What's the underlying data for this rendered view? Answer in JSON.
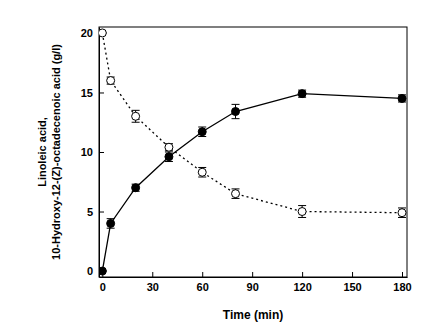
{
  "chart_data": {
    "type": "line",
    "xlabel": "Time (min)",
    "ylabel": [
      "Linoleic acid,",
      "10-Hydroxy-12-(Z)-octadecenoic acid (g/l)"
    ],
    "x": [
      0,
      5,
      20,
      40,
      60,
      80,
      120,
      180
    ],
    "series": [
      {
        "color": "#000000",
        "marker": "filled-circle",
        "line_style": "solid",
        "values": [
          0,
          4.0,
          7.0,
          9.6,
          11.7,
          13.4,
          14.9,
          14.5
        ],
        "errors": [
          0,
          0.4,
          0.3,
          0.4,
          0.4,
          0.6,
          0.3,
          0.3
        ]
      },
      {
        "color": "#000000",
        "marker": "open-circle",
        "line_style": "dotted",
        "values": [
          20,
          16,
          13,
          10.4,
          8.3,
          6.5,
          5.0,
          4.9
        ],
        "errors": [
          0,
          0.3,
          0.5,
          0.3,
          0.4,
          0.4,
          0.5,
          0.4
        ]
      }
    ],
    "xlim": [
      -2,
      183
    ],
    "ylim": [
      -0.5,
      20.5
    ],
    "xticks": [
      0,
      30,
      60,
      90,
      120,
      150,
      180
    ],
    "yticks": [
      0,
      5,
      10,
      15,
      20
    ],
    "grid": false
  }
}
